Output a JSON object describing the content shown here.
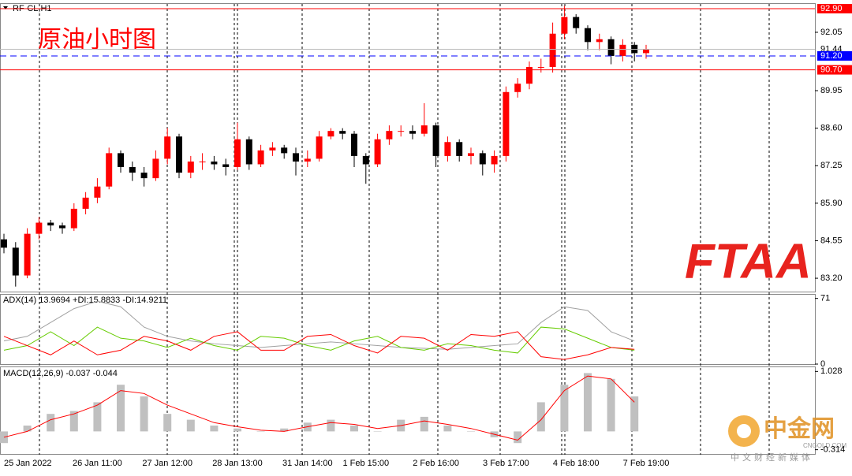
{
  "header": {
    "symbol": "RF-CL,H1"
  },
  "chart_data": [
    {
      "type": "candlestick",
      "annotation": "原油小时图",
      "categories": [
        "25 Jan 2022",
        null,
        null,
        null,
        null,
        null,
        null,
        null,
        "26 Jan 11:00",
        null,
        null,
        null,
        null,
        null,
        "27 Jan 12:00",
        null,
        null,
        null,
        null,
        null,
        "28 Jan 13:00",
        null,
        null,
        null,
        null,
        null,
        "31 Jan 14:00",
        null,
        null,
        null,
        null,
        "1 Feb 15:00",
        null,
        null,
        null,
        null,
        null,
        "2 Feb 16:00",
        null,
        null,
        null,
        null,
        null,
        "3 Feb 17:00",
        null,
        null,
        null,
        null,
        null,
        "4 Feb 18:00",
        null,
        null,
        null,
        null,
        null,
        "7 Feb 19:00"
      ],
      "open": [
        84.6,
        84.3,
        83.3,
        84.8,
        85.2,
        85.1,
        85.0,
        85.7,
        86.1,
        86.5,
        87.7,
        87.2,
        87.0,
        86.8,
        87.5,
        88.3,
        87.0,
        87.4,
        87.4,
        87.3,
        87.2,
        88.2,
        87.3,
        87.8,
        87.9,
        87.7,
        87.4,
        87.5,
        88.3,
        88.5,
        88.4,
        87.6,
        87.3,
        88.2,
        88.5,
        88.5,
        88.4,
        88.7,
        87.6,
        88.1,
        87.6,
        87.7,
        87.3,
        87.6,
        89.9,
        90.2,
        90.8,
        90.8,
        92.0,
        92.6,
        92.2,
        91.7,
        91.8,
        91.2,
        91.6,
        91.3
      ],
      "high": [
        84.8,
        84.5,
        85.0,
        85.4,
        85.3,
        85.2,
        85.9,
        86.3,
        86.8,
        87.9,
        87.8,
        87.4,
        87.2,
        87.8,
        88.6,
        88.4,
        87.6,
        87.7,
        87.6,
        87.5,
        88.8,
        88.3,
        88.0,
        88.1,
        88.0,
        87.9,
        87.8,
        88.5,
        88.6,
        88.6,
        88.5,
        87.7,
        88.4,
        88.7,
        88.7,
        88.7,
        89.5,
        88.8,
        88.3,
        88.2,
        87.9,
        87.8,
        87.8,
        90.1,
        90.4,
        91.0,
        91.1,
        92.4,
        93.0,
        92.7,
        92.3,
        92.0,
        91.9,
        91.8,
        91.7,
        91.6
      ],
      "low": [
        84.1,
        82.9,
        83.2,
        84.6,
        84.9,
        84.8,
        84.9,
        85.5,
        85.9,
        86.4,
        87.0,
        86.7,
        86.5,
        86.7,
        87.3,
        86.8,
        86.8,
        87.1,
        87.1,
        86.9,
        87.1,
        87.1,
        87.2,
        87.6,
        87.5,
        86.9,
        87.2,
        87.4,
        88.2,
        88.2,
        87.2,
        86.6,
        87.2,
        88.0,
        88.3,
        88.2,
        88.3,
        87.2,
        87.4,
        87.4,
        87.3,
        86.9,
        87.0,
        87.4,
        89.7,
        90.0,
        90.6,
        90.6,
        91.8,
        92.0,
        91.4,
        91.4,
        90.9,
        91.0,
        91.0,
        91.1
      ],
      "close": [
        84.3,
        83.3,
        84.8,
        85.2,
        85.1,
        85.0,
        85.7,
        86.1,
        86.5,
        87.7,
        87.2,
        87.0,
        86.8,
        87.5,
        88.3,
        87.0,
        87.4,
        87.4,
        87.3,
        87.2,
        88.2,
        87.3,
        87.8,
        87.9,
        87.7,
        87.4,
        87.5,
        88.3,
        88.5,
        88.4,
        87.6,
        87.3,
        88.2,
        88.5,
        88.5,
        88.4,
        88.7,
        87.6,
        88.1,
        87.6,
        87.7,
        87.3,
        87.6,
        89.9,
        90.2,
        90.8,
        90.8,
        92.0,
        92.6,
        92.2,
        91.7,
        91.8,
        91.2,
        91.6,
        91.3,
        91.44
      ],
      "up_color": "#ff0000",
      "down_color": "#000000",
      "ylim": [
        82.72,
        93.07
      ],
      "yticks": [
        {
          "value": 83.2,
          "label": "83.20"
        },
        84.55,
        {
          "value": 85.9,
          "label": "85.90"
        },
        87.25,
        {
          "value": 88.6,
          "label": "88.60"
        },
        89.95,
        92.05
      ],
      "levels": [
        {
          "value": 92.9,
          "label": "92.90",
          "color": "#ff0000",
          "style": "solid"
        },
        {
          "value": 91.2,
          "label": "91.20",
          "color": "#0000ff",
          "style": "dashed"
        },
        {
          "value": 90.7,
          "label": "90.70",
          "color": "#ff0000",
          "style": "solid"
        }
      ],
      "current_price": 91.44
    },
    {
      "type": "line",
      "title": "ADX(14) 13.9694 +DI:15.8833 -DI:14.9211",
      "ylim": [
        0,
        75
      ],
      "yticks": [
        0,
        71
      ],
      "series": [
        {
          "name": "ADX",
          "color": "#a0a0a0",
          "values": [
            25,
            30,
            45,
            60,
            68,
            62,
            40,
            30,
            25,
            22,
            20,
            18,
            20,
            22,
            24,
            22,
            20,
            18,
            17,
            16,
            18,
            20,
            22,
            45,
            62,
            58,
            35,
            25
          ]
        },
        {
          "name": "+DI",
          "color": "#66cc00",
          "values": [
            15,
            20,
            35,
            20,
            40,
            28,
            25,
            18,
            28,
            20,
            15,
            30,
            28,
            20,
            15,
            25,
            30,
            18,
            15,
            22,
            20,
            15,
            12,
            40,
            38,
            28,
            18,
            15
          ]
        },
        {
          "name": "-DI",
          "color": "#ff0000",
          "values": [
            30,
            20,
            10,
            25,
            10,
            15,
            30,
            25,
            15,
            30,
            35,
            15,
            15,
            30,
            32,
            20,
            12,
            30,
            28,
            15,
            32,
            30,
            35,
            8,
            5,
            10,
            18,
            16
          ]
        }
      ]
    },
    {
      "type": "macd",
      "title": "MACD(12,26,9) -0.037 -0.044",
      "ylim": [
        -0.4,
        1.1
      ],
      "yticks": [
        1.028,
        {
          "value": -0.314,
          "label": "-0.314"
        }
      ],
      "histogram": {
        "color": "#c0c0c0",
        "values": [
          -0.2,
          0.1,
          0.3,
          0.35,
          0.5,
          0.8,
          0.6,
          0.3,
          0.2,
          0.1,
          0.05,
          0.0,
          0.05,
          0.15,
          0.2,
          0.1,
          0.0,
          0.2,
          0.25,
          0.1,
          0.0,
          -0.1,
          -0.2,
          0.5,
          0.8,
          1.0,
          0.9,
          0.6
        ]
      },
      "signal": {
        "color": "#ff0000",
        "values": [
          -0.1,
          0.0,
          0.2,
          0.3,
          0.45,
          0.7,
          0.65,
          0.45,
          0.3,
          0.15,
          0.08,
          0.02,
          0.0,
          0.08,
          0.15,
          0.12,
          0.05,
          0.1,
          0.18,
          0.12,
          0.05,
          -0.05,
          -0.15,
          0.2,
          0.7,
          0.95,
          0.9,
          0.5
        ]
      }
    }
  ],
  "logo": "FTAA",
  "watermark": {
    "name": "中金网",
    "site": "CNGOLD.COM",
    "slogan": "中文财经新媒体"
  }
}
